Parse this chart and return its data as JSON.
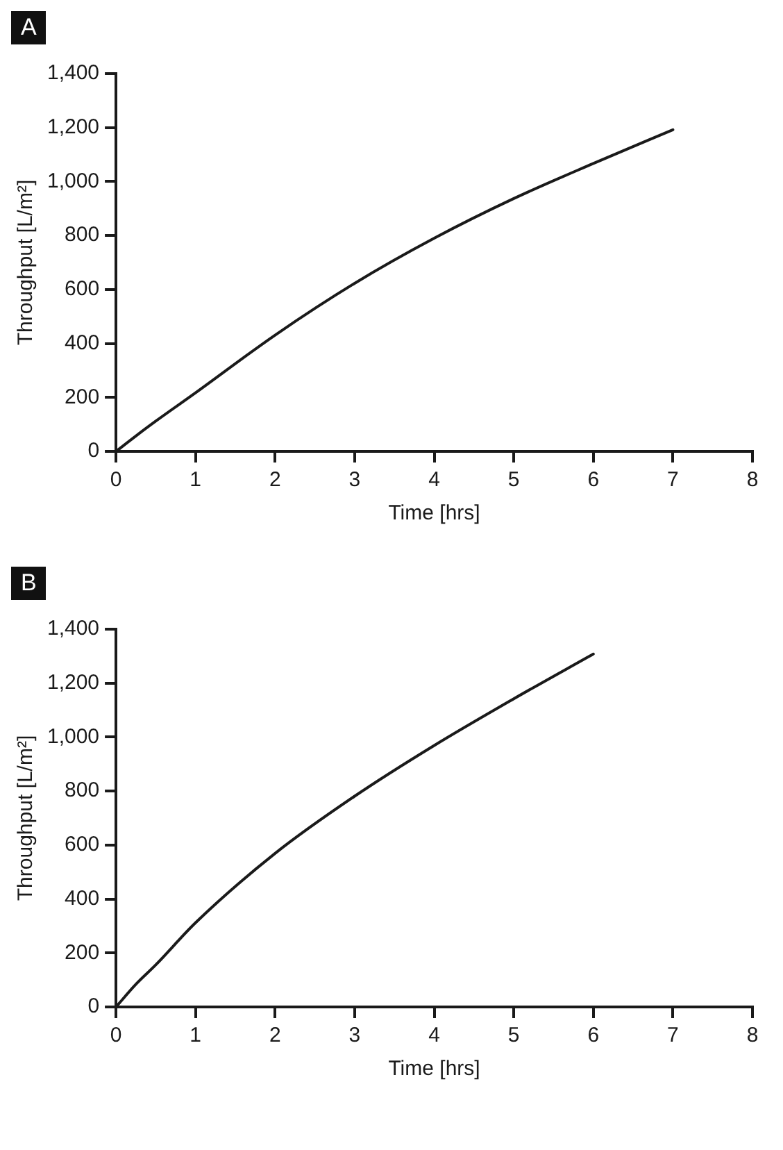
{
  "chart_data": [
    {
      "type": "line",
      "annotations": [
        "A"
      ],
      "xlabel": "Time [hrs]",
      "ylabel": "Throughput [L/m²]",
      "x": [
        0,
        0.25,
        0.5,
        1,
        2,
        3,
        4,
        5,
        6,
        7
      ],
      "series": [
        {
          "color": "#1a1a1a",
          "values": [
            0,
            57,
            112,
            217,
            431,
            623,
            790,
            937,
            1067,
            1192
          ]
        }
      ],
      "xlim": [
        0,
        8
      ],
      "xticks": [
        0,
        1,
        2,
        3,
        4,
        5,
        6,
        7,
        8
      ],
      "ylim": [
        0,
        1400
      ],
      "yticks": [
        0,
        200,
        400,
        600,
        800,
        {
          "value": 1000,
          "label": "1,000"
        },
        {
          "value": 1200,
          "label": "1,200"
        },
        {
          "value": 1400,
          "label": "1,400"
        }
      ],
      "grid": false,
      "legend": false,
      "marker": "none",
      "line_style": "solid"
    },
    {
      "type": "line",
      "annotations": [
        "B"
      ],
      "xlabel": "Time [hrs]",
      "ylabel": "Throughput [L/m²]",
      "x": [
        0,
        0.25,
        0.5,
        1,
        2,
        3,
        4,
        5,
        6
      ],
      "series": [
        {
          "color": "#1a1a1a",
          "values": [
            0,
            84,
            156,
            312,
            569,
            781,
            969,
            1142,
            1308
          ]
        }
      ],
      "xlim": [
        0,
        8
      ],
      "xticks": [
        0,
        1,
        2,
        3,
        4,
        5,
        6,
        7,
        8
      ],
      "ylim": [
        0,
        1400
      ],
      "yticks": [
        0,
        200,
        400,
        600,
        800,
        {
          "value": 1000,
          "label": "1,000"
        },
        {
          "value": 1200,
          "label": "1,200"
        },
        {
          "value": 1400,
          "label": "1,400"
        }
      ],
      "grid": false,
      "legend": false,
      "marker": "none",
      "line_style": "solid"
    }
  ]
}
